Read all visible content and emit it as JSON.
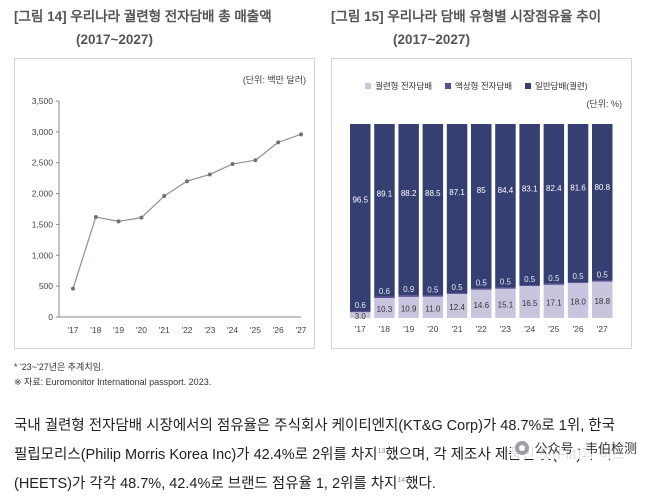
{
  "figure14": {
    "title": "[그림 14] 우리나라 궐련형 전자담배 총 매출액",
    "period": "(2017~2027)"
  },
  "figure15": {
    "title": "[그림 15] 우리나라 담배 유형별 시장점유율 추이",
    "period": "(2017~2027)"
  },
  "notes": {
    "forecast": "* '23~'27년은 추계치임.",
    "source": "※ 자료: Euromonitor International passport. 2023."
  },
  "body": {
    "line1": "국내 궐련형 전자담배 시장에서의 점유율은 주식회사 케이티엔지(KT&G Corp)가 48.7%로 1위, 한국",
    "line2a": "필립모리스(Philip Morris Korea Inc)가 42.4%로 2위를 차지",
    "sup1": "13",
    "line2b": "했으며, 각 제조사 제품인 핏(Fiit)과 히츠",
    "line3a": "(HEETS)가 각각 48.7%, 42.4%로 브랜드 점유율 1, 2위를 차지",
    "sup2": "14",
    "line3b": "했다."
  },
  "watermark": {
    "text": "公众号 · 韦伯检测"
  },
  "colors": {
    "line": "#8a9099",
    "heated": "#c8c5df",
    "liquid": "#5d4a9a",
    "general": "#363f72"
  },
  "chart_data": [
    {
      "type": "line",
      "unit": "(단위: 백만 달러)",
      "categories": [
        "'17",
        "'18",
        "'19",
        "'20",
        "'21",
        "'22",
        "'23",
        "'24",
        "'25",
        "'26",
        "'27"
      ],
      "values": [
        460,
        1620,
        1550,
        1610,
        1960,
        2200,
        2310,
        2480,
        2540,
        2830,
        2960
      ],
      "ylim": [
        0,
        3500
      ],
      "yticks": [
        0,
        500,
        1000,
        1500,
        2000,
        2500,
        3000,
        3500
      ],
      "ytick_labels": [
        "0",
        "500",
        "1,000",
        "1,500",
        "2,000",
        "2,500",
        "3,000",
        "3,500"
      ],
      "grid": false
    },
    {
      "type": "bar",
      "stacked": true,
      "unit": "(단위: %)",
      "legend_position": "top",
      "categories": [
        "'17",
        "'18",
        "'19",
        "'20",
        "'21",
        "'22",
        "'23",
        "'24",
        "'25",
        "'26",
        "'27"
      ],
      "ylim": [
        0,
        100
      ],
      "series": [
        {
          "name": "궐련형 전자담배",
          "values": [
            3.0,
            10.3,
            10.9,
            11.0,
            12.4,
            14.6,
            15.1,
            16.5,
            17.1,
            18.0,
            18.8
          ],
          "labels": [
            "3.0",
            "10.3",
            "10.9",
            "11.0",
            "12.4",
            "14.6",
            "15.1",
            "16.5",
            "17.1",
            "18.0",
            "18.8"
          ]
        },
        {
          "name": "액상형 전자담배",
          "values": [
            0.6,
            0.6,
            0.9,
            0.5,
            0.5,
            0.5,
            0.5,
            0.5,
            0.5,
            0.5,
            0.5
          ],
          "labels": [
            "0.6",
            "0.6",
            "0.9",
            "0.5",
            "0.5",
            "0.5",
            "0.5",
            "0.5",
            "0.5",
            "0.5",
            "0.5"
          ]
        },
        {
          "name": "일반담배(궐련)",
          "values": [
            96.5,
            89.1,
            88.2,
            88.5,
            87.1,
            85,
            84.4,
            83.1,
            82.4,
            81.6,
            80.8
          ],
          "labels": [
            "96.5",
            "89.1",
            "88.2",
            "88.5",
            "87.1",
            "85",
            "84.4",
            "83.1",
            "82.4",
            "81.6",
            "80.8"
          ]
        }
      ]
    }
  ]
}
